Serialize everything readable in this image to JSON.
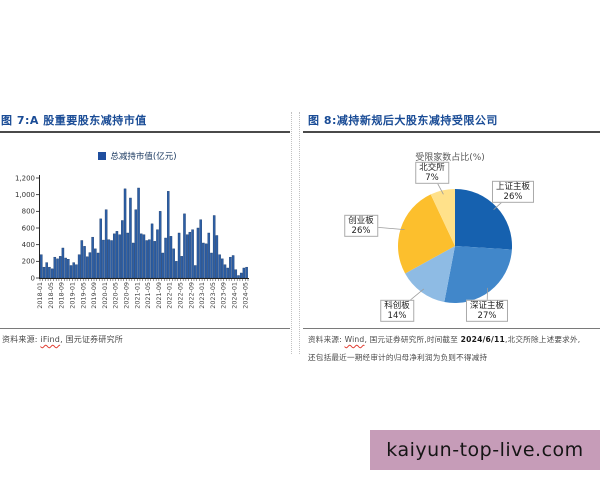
{
  "fig7": {
    "title": "图 7:A 股重要股东减持市值",
    "legend": "总减持市值(亿元)",
    "source_prefix": "资料来源:",
    "source_tool": "iFind",
    "source_rest": ", 国元证券研究所"
  },
  "fig8": {
    "title": "图 8:减持新规后大股东减持受限公司",
    "chart_title": "受限家数占比(%)",
    "source_prefix": "资料来源:",
    "source_tool": "Wind",
    "source_mid": ", 国元证券研究所,时间截至 ",
    "source_date": "2024/6/11",
    "source_tail": ",北交所除上述要求外,",
    "source_line2": "还包括最近一期经审计的归母净利润为负则不得减持"
  },
  "watermark": {
    "text": "kaiyun-top-live.com",
    "bg_color": "#C69CB8"
  },
  "chart_data": [
    {
      "type": "bar",
      "title": "A股重要股东减持市值",
      "legend": "总减持市值(亿元)",
      "ylabel": "",
      "xlabel": "",
      "ylim": [
        0,
        1200
      ],
      "ytick_step": 200,
      "xtick_every": 4,
      "grid": false,
      "bar_color": "#2D5FA6",
      "bar_border": "#1B3C6D",
      "categories": [
        "2018-01",
        "2018-02",
        "2018-03",
        "2018-04",
        "2018-05",
        "2018-06",
        "2018-07",
        "2018-08",
        "2018-09",
        "2018-10",
        "2018-11",
        "2018-12",
        "2019-01",
        "2019-02",
        "2019-03",
        "2019-04",
        "2019-05",
        "2019-06",
        "2019-07",
        "2019-08",
        "2019-09",
        "2019-10",
        "2019-11",
        "2019-12",
        "2020-01",
        "2020-02",
        "2020-03",
        "2020-04",
        "2020-05",
        "2020-06",
        "2020-07",
        "2020-08",
        "2020-09",
        "2020-10",
        "2020-11",
        "2020-12",
        "2021-01",
        "2021-02",
        "2021-03",
        "2021-04",
        "2021-05",
        "2021-06",
        "2021-07",
        "2021-08",
        "2021-09",
        "2021-10",
        "2021-11",
        "2021-12",
        "2022-01",
        "2022-02",
        "2022-03",
        "2022-04",
        "2022-05",
        "2022-06",
        "2022-07",
        "2022-08",
        "2022-09",
        "2022-10",
        "2022-11",
        "2022-12",
        "2023-01",
        "2023-02",
        "2023-03",
        "2023-04",
        "2023-05",
        "2023-06",
        "2023-07",
        "2023-08",
        "2023-09",
        "2023-10",
        "2023-11",
        "2023-12",
        "2024-01",
        "2024-02",
        "2024-03",
        "2024-04",
        "2024-05"
      ],
      "values": [
        280,
        130,
        185,
        130,
        110,
        250,
        230,
        260,
        360,
        240,
        225,
        150,
        185,
        160,
        280,
        450,
        380,
        255,
        305,
        490,
        350,
        300,
        710,
        455,
        820,
        460,
        450,
        530,
        560,
        520,
        690,
        1070,
        540,
        960,
        420,
        820,
        1080,
        530,
        520,
        450,
        460,
        650,
        440,
        580,
        800,
        300,
        480,
        1040,
        500,
        350,
        200,
        540,
        260,
        770,
        520,
        550,
        580,
        150,
        600,
        700,
        420,
        410,
        540,
        300,
        750,
        510,
        280,
        230,
        160,
        120,
        250,
        270,
        100,
        30,
        60,
        120,
        130
      ]
    },
    {
      "type": "pie",
      "title": "受限家数占比(%)",
      "labels": [
        "上证主板",
        "深证主板",
        "科创板",
        "创业板",
        "北交所"
      ],
      "values": [
        26,
        27,
        14,
        26,
        7
      ],
      "colors": [
        "#1661AF",
        "#4187CA",
        "#8EBBE4",
        "#FCBF2D",
        "#FFE18A"
      ],
      "start_angle": "12-oclock",
      "direction": "clockwise",
      "legend_position": "callout-boxes"
    }
  ]
}
